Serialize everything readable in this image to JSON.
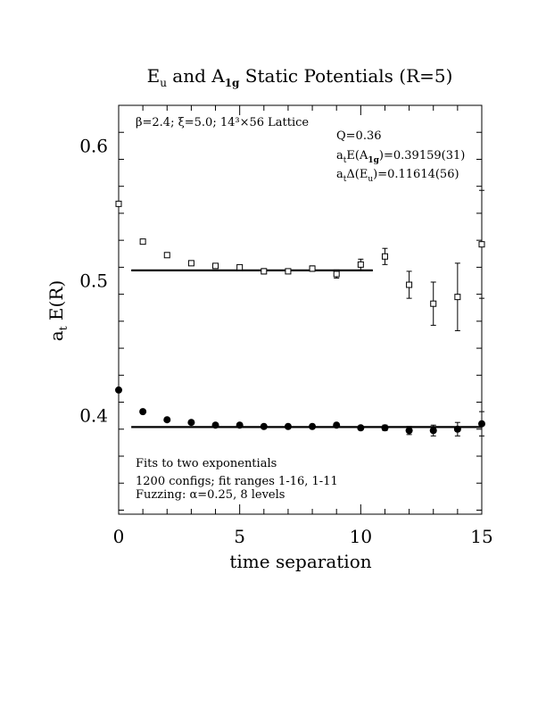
{
  "chart_data": {
    "type": "scatter",
    "title": {
      "main1": "E",
      "sub1": "u",
      "mid": " and A",
      "sub2": "1g",
      "end": " Static Potentials (R=5)"
    },
    "xlabel": "time separation",
    "ylabel": {
      "main": "a",
      "sub": "t",
      "rest": " E(R)"
    },
    "xlim": [
      0,
      15
    ],
    "ylim": [
      0.327,
      0.63
    ],
    "xticks": [
      0,
      5,
      10,
      15
    ],
    "xtick_labels": [
      "0",
      "5",
      "10",
      "15"
    ],
    "yticks": [
      0.4,
      0.5,
      0.6
    ],
    "ytick_labels": [
      "0.4",
      "0.5",
      "0.6"
    ],
    "grid": false,
    "annotations": {
      "lattice": "β=2.4; ξ=5.0; 14³×56 Lattice",
      "q": "Q=0.36",
      "energy_a1g_pre": "a",
      "energy_a1g_sub_t": "t",
      "energy_a1g_mid": "E(A",
      "energy_a1g_sub": "1g",
      "energy_a1g_val": ")=0.39159(31)",
      "gap_eu_pre": "a",
      "gap_eu_sub_t": "t",
      "gap_eu_mid": "Δ(E",
      "gap_eu_sub": "u",
      "gap_eu_val": ")=0.11614(56)",
      "fit_note": "Fits to two exponentials",
      "configs": "1200 configs; fit ranges 1-16, 1-11",
      "fuzzing": "Fuzzing: α=0.25, 8 levels"
    },
    "series": [
      {
        "marker": "open-square",
        "x": [
          0,
          1,
          2,
          3,
          4,
          5,
          6,
          7,
          8,
          9,
          10,
          11,
          12,
          13,
          14,
          15
        ],
        "y": [
          0.557,
          0.529,
          0.519,
          0.513,
          0.511,
          0.51,
          0.507,
          0.507,
          0.509,
          0.505,
          0.512,
          0.518,
          0.497,
          0.483,
          0.488,
          0.527
        ],
        "err": [
          0.001,
          0.001,
          0.001,
          0.001,
          0.001,
          0.001,
          0.002,
          0.0015,
          0.002,
          0.003,
          0.004,
          0.006,
          0.01,
          0.016,
          0.025,
          0.04
        ]
      },
      {
        "marker": "filled-circle",
        "x": [
          0,
          1,
          2,
          3,
          4,
          5,
          6,
          7,
          8,
          9,
          10,
          11,
          12,
          13,
          14,
          15
        ],
        "y": [
          0.419,
          0.403,
          0.397,
          0.395,
          0.393,
          0.393,
          0.392,
          0.392,
          0.392,
          0.393,
          0.391,
          0.391,
          0.389,
          0.389,
          0.39,
          0.394
        ],
        "err": [
          0.0005,
          0.0005,
          0.0005,
          0.0005,
          0.0005,
          0.0005,
          0.0005,
          0.0008,
          0.001,
          0.001,
          0.001,
          0.002,
          0.003,
          0.004,
          0.005,
          0.009
        ]
      }
    ],
    "fit_lines": [
      {
        "value": 0.5077,
        "x_range": [
          1,
          10.5
        ]
      },
      {
        "value": 0.39159,
        "x_range": [
          1,
          15
        ]
      }
    ]
  }
}
